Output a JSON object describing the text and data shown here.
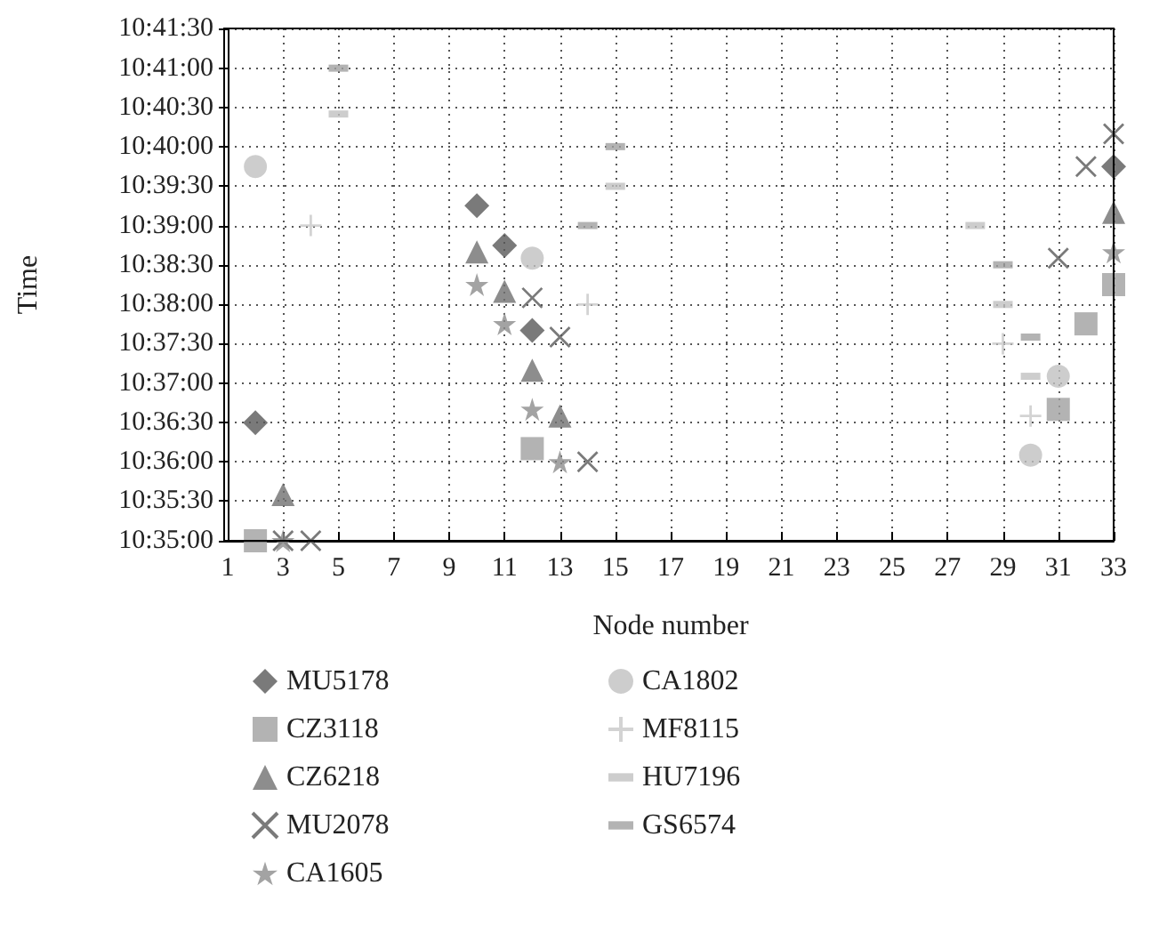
{
  "chart_data": {
    "type": "scatter",
    "xlabel": "Node number",
    "ylabel": "Time",
    "xlim": [
      1,
      33
    ],
    "xticks": [
      1,
      3,
      5,
      7,
      9,
      11,
      13,
      15,
      17,
      19,
      21,
      23,
      25,
      27,
      29,
      31,
      33
    ],
    "ylim": [
      10.5833,
      10.6917
    ],
    "yticks": [
      {
        "value": 10.5833,
        "label": "10:35:00"
      },
      {
        "value": 10.5917,
        "label": "10:35:30"
      },
      {
        "value": 10.6,
        "label": "10:36:00"
      },
      {
        "value": 10.6083,
        "label": "10:36:30"
      },
      {
        "value": 10.6167,
        "label": "10:37:00"
      },
      {
        "value": 10.625,
        "label": "10:37:30"
      },
      {
        "value": 10.6333,
        "label": "10:38:00"
      },
      {
        "value": 10.6417,
        "label": "10:38:30"
      },
      {
        "value": 10.65,
        "label": "10:39:00"
      },
      {
        "value": 10.6583,
        "label": "10:39:30"
      },
      {
        "value": 10.6667,
        "label": "10:40:00"
      },
      {
        "value": 10.675,
        "label": "10:40:30"
      },
      {
        "value": 10.6833,
        "label": "10:41:00"
      },
      {
        "value": 10.6917,
        "label": "10:41:30"
      }
    ],
    "grid": true,
    "legend": "bottom",
    "series": [
      {
        "name": "MU5178",
        "color": "#595959",
        "marker": "diamond",
        "x": [
          2,
          10,
          11,
          12,
          33
        ],
        "values": [
          10.6083,
          10.6542,
          10.6458,
          10.6278,
          10.6625
        ]
      },
      {
        "name": "CZ3118",
        "color": "#a0a0a0",
        "marker": "square",
        "x": [
          2,
          12,
          31,
          32,
          33
        ],
        "values": [
          10.5833,
          10.6028,
          10.6111,
          10.6292,
          10.6375
        ]
      },
      {
        "name": "CZ6218",
        "color": "#707070",
        "marker": "triangle",
        "x": [
          3,
          10,
          11,
          12,
          13,
          33
        ],
        "values": [
          10.5931,
          10.6444,
          10.6361,
          10.6194,
          10.6097,
          10.6528
        ]
      },
      {
        "name": "MU2078",
        "color": "#595959",
        "marker": "cross",
        "x": [
          3,
          4,
          12,
          13,
          14,
          31,
          32,
          33
        ],
        "values": [
          10.5833,
          10.5833,
          10.6347,
          10.6264,
          10.6,
          10.6431,
          10.6625,
          10.6694
        ]
      },
      {
        "name": "CA1605",
        "color": "#8c8c8c",
        "marker": "star",
        "x": [
          3,
          10,
          11,
          12,
          13,
          33
        ],
        "values": [
          10.5833,
          10.6375,
          10.6292,
          10.6111,
          10.6,
          10.6444
        ]
      },
      {
        "name": "CA1802",
        "color": "#c0c0c0",
        "marker": "circle",
        "x": [
          2,
          12,
          30,
          31
        ],
        "values": [
          10.6625,
          10.6431,
          10.6014,
          10.6181
        ]
      },
      {
        "name": "MF8115",
        "color": "#c8c8c8",
        "marker": "plus",
        "x": [
          4,
          14,
          29,
          30
        ],
        "values": [
          10.65,
          10.6333,
          10.625,
          10.6097
        ]
      },
      {
        "name": "HU7196",
        "color": "#c0c0c0",
        "x": [
          5,
          15,
          28,
          29,
          30
        ],
        "values": [
          10.6736,
          10.6583,
          10.65,
          10.6333,
          10.6181
        ]
      },
      {
        "name": "GS6574",
        "color": "#a0a0a0",
        "x": [
          5,
          14,
          15,
          29,
          30
        ],
        "values": [
          10.6833,
          10.65,
          10.6667,
          10.6417,
          10.6264
        ]
      }
    ]
  }
}
